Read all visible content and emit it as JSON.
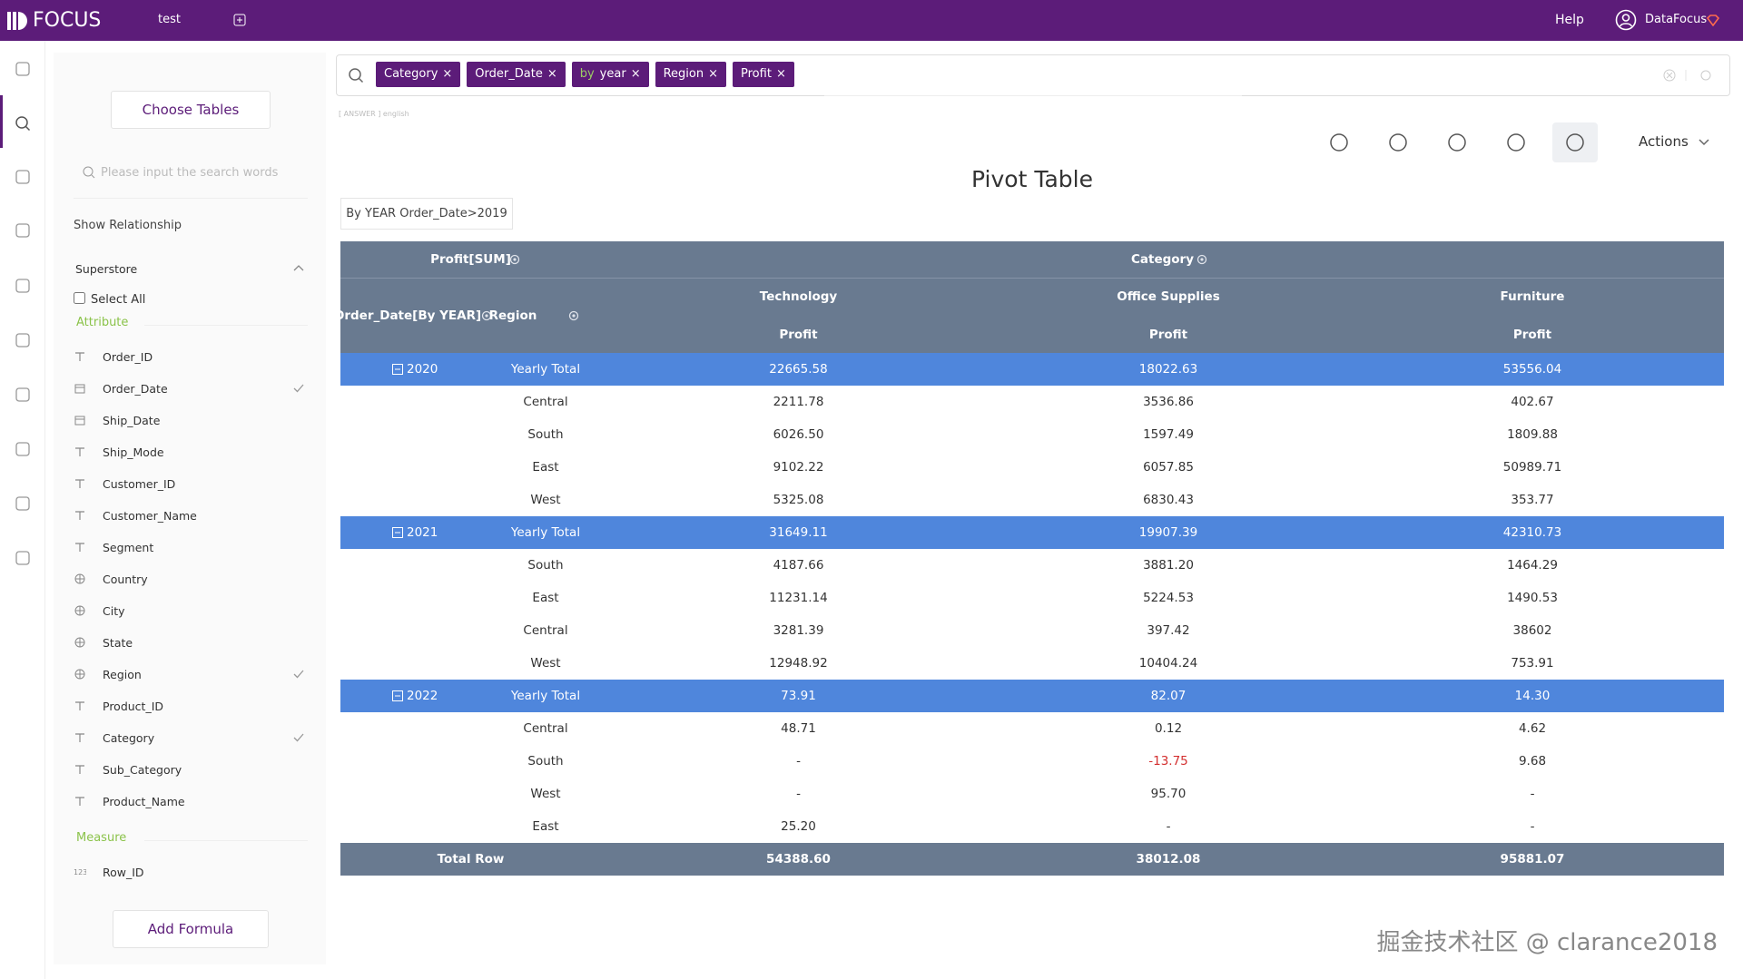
{
  "header": {
    "logo": "FOCUS",
    "tab": "test",
    "help": "Help",
    "user": "DataFocus"
  },
  "search": {
    "tokens": [
      {
        "label": "Category"
      },
      {
        "label": "Order_Date"
      },
      {
        "prefix": "by",
        "label": "year"
      },
      {
        "label": "Region"
      },
      {
        "label": "Profit"
      }
    ],
    "hint": "[ ANSWER ] english"
  },
  "sidebar": {
    "choose_tables": "Choose Tables",
    "search_placeholder": "Please input the search words",
    "show_relationship": "Show Relationship",
    "table_name": "Superstore",
    "select_all": "Select All",
    "attribute_title": "Attribute",
    "attributes": [
      {
        "name": "Order_ID",
        "icon": "text",
        "checked": false
      },
      {
        "name": "Order_Date",
        "icon": "date",
        "checked": true
      },
      {
        "name": "Ship_Date",
        "icon": "date",
        "checked": false
      },
      {
        "name": "Ship_Mode",
        "icon": "text",
        "checked": false
      },
      {
        "name": "Customer_ID",
        "icon": "text",
        "checked": false
      },
      {
        "name": "Customer_Name",
        "icon": "text",
        "checked": false
      },
      {
        "name": "Segment",
        "icon": "text",
        "checked": false
      },
      {
        "name": "Country",
        "icon": "geo",
        "checked": false
      },
      {
        "name": "City",
        "icon": "geo",
        "checked": false
      },
      {
        "name": "State",
        "icon": "geo",
        "checked": false
      },
      {
        "name": "Region",
        "icon": "geo",
        "checked": true
      },
      {
        "name": "Product_ID",
        "icon": "text",
        "checked": false
      },
      {
        "name": "Category",
        "icon": "text",
        "checked": true
      },
      {
        "name": "Sub_Category",
        "icon": "text",
        "checked": false
      },
      {
        "name": "Product_Name",
        "icon": "text",
        "checked": false
      }
    ],
    "measure_title": "Measure",
    "measures": [
      {
        "name": "Row_ID",
        "icon": "number",
        "checked": false
      }
    ],
    "add_formula": "Add Formula"
  },
  "toolbar": {
    "actions": "Actions"
  },
  "title": "Pivot Table",
  "filter": "By YEAR Order_Date>2019",
  "pivot": {
    "value_header": "Profit[SUM]",
    "column_header": "Category",
    "row_headers": [
      "Order_Date[By YEAR]",
      "Region"
    ],
    "columns": [
      "Technology",
      "Office Supplies",
      "Furniture"
    ],
    "measure": "Profit",
    "groups": [
      {
        "year": "2020",
        "total_label": "Yearly Total",
        "total": [
          "22665.58",
          "18022.63",
          "53556.04"
        ],
        "rows": [
          {
            "region": "Central",
            "values": [
              "2211.78",
              "3536.86",
              "402.67"
            ]
          },
          {
            "region": "South",
            "values": [
              "6026.50",
              "1597.49",
              "1809.88"
            ]
          },
          {
            "region": "East",
            "values": [
              "9102.22",
              "6057.85",
              "50989.71"
            ]
          },
          {
            "region": "West",
            "values": [
              "5325.08",
              "6830.43",
              "353.77"
            ]
          }
        ]
      },
      {
        "year": "2021",
        "total_label": "Yearly Total",
        "total": [
          "31649.11",
          "19907.39",
          "42310.73"
        ],
        "rows": [
          {
            "region": "South",
            "values": [
              "4187.66",
              "3881.20",
              "1464.29"
            ]
          },
          {
            "region": "East",
            "values": [
              "11231.14",
              "5224.53",
              "1490.53"
            ]
          },
          {
            "region": "Central",
            "values": [
              "3281.39",
              "397.42",
              "38602"
            ]
          },
          {
            "region": "West",
            "values": [
              "12948.92",
              "10404.24",
              "753.91"
            ]
          }
        ]
      },
      {
        "year": "2022",
        "total_label": "Yearly Total",
        "total": [
          "73.91",
          "82.07",
          "14.30"
        ],
        "rows": [
          {
            "region": "Central",
            "values": [
              "48.71",
              "0.12",
              "4.62"
            ]
          },
          {
            "region": "South",
            "values": [
              "-",
              "-13.75",
              "9.68"
            ]
          },
          {
            "region": "West",
            "values": [
              "-",
              "95.70",
              "-"
            ]
          },
          {
            "region": "East",
            "values": [
              "25.20",
              "-",
              "-"
            ]
          }
        ]
      }
    ],
    "total_row": {
      "label": "Total Row",
      "values": [
        "54388.60",
        "38012.08",
        "95881.07"
      ]
    }
  },
  "watermark": "掘金技术社区 @ clarance2018"
}
